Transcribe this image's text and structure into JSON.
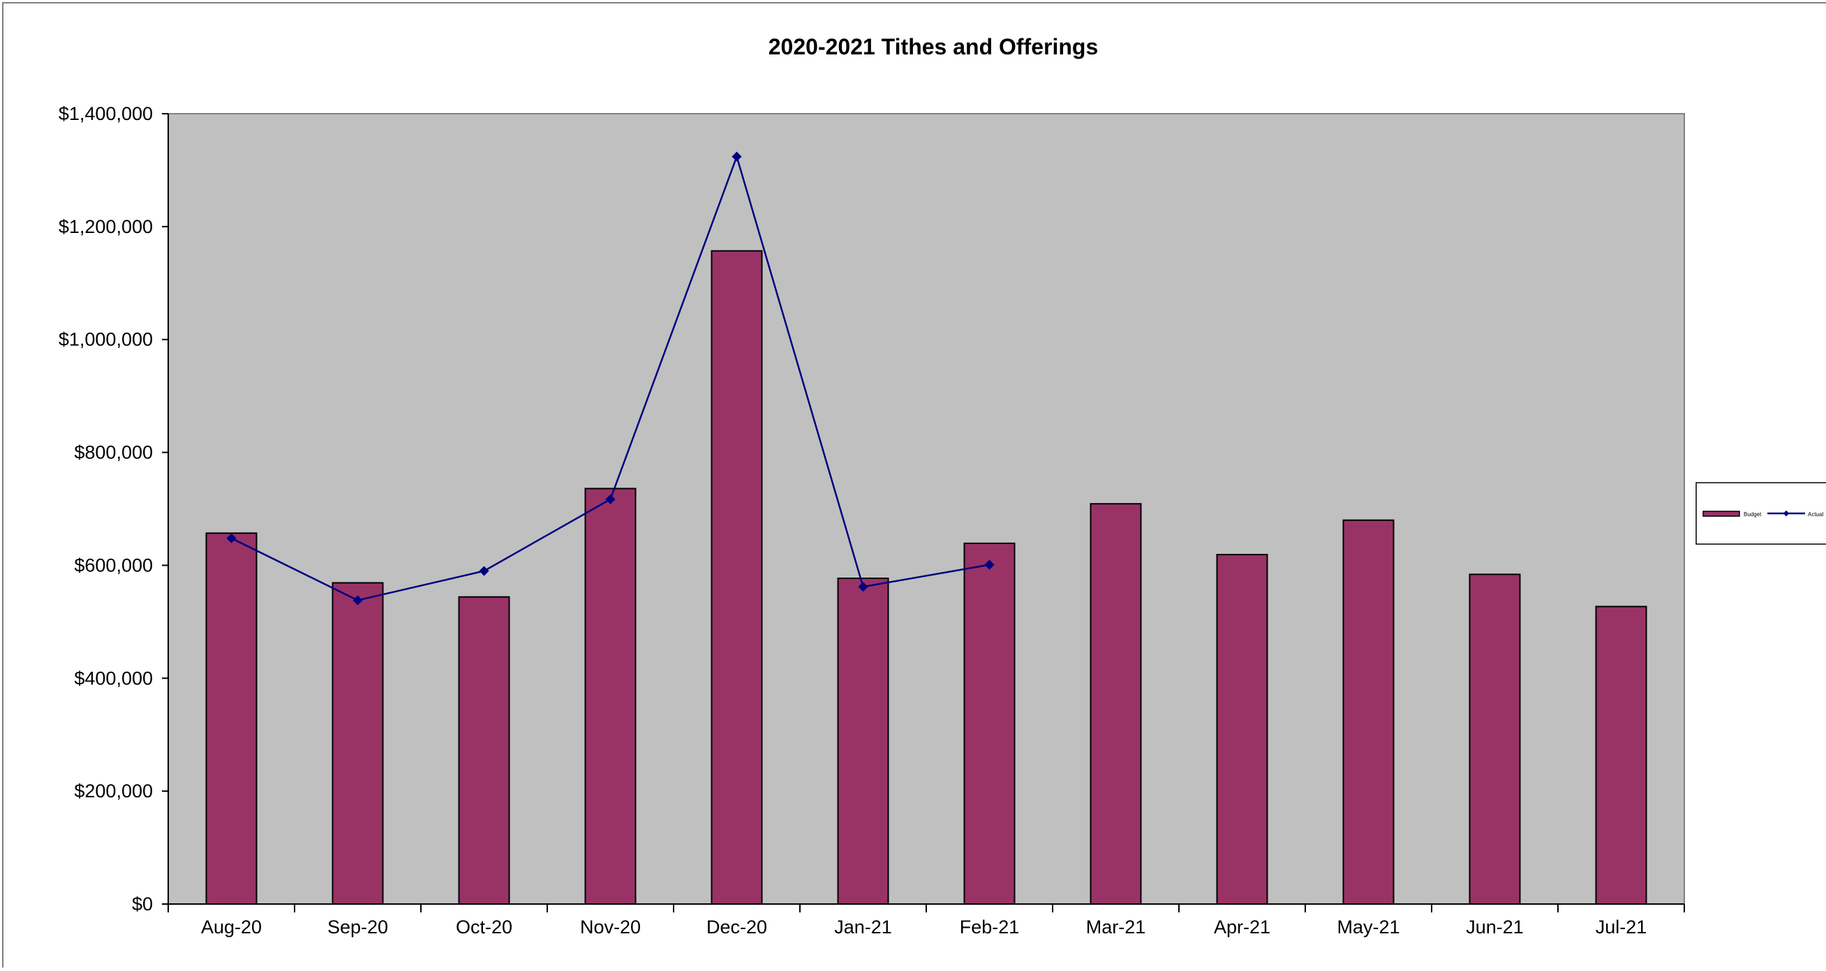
{
  "chart_data": {
    "type": "bar",
    "title": "2020-2021 Tithes and Offerings",
    "xlabel": "",
    "ylabel": "",
    "categories": [
      "Aug-20",
      "Sep-20",
      "Oct-20",
      "Nov-20",
      "Dec-20",
      "Jan-21",
      "Feb-21",
      "Mar-21",
      "Apr-21",
      "May-21",
      "Jun-21",
      "Jul-21"
    ],
    "ylim": [
      0,
      1400000
    ],
    "y_ticks": [
      0,
      200000,
      400000,
      600000,
      800000,
      1000000,
      1200000,
      1400000
    ],
    "y_tick_labels": [
      "$0",
      "$200,000",
      "$400,000",
      "$600,000",
      "$800,000",
      "$1,000,000",
      "$1,200,000",
      "$1,400,000"
    ],
    "grid": false,
    "legend_position": "right",
    "series": [
      {
        "name": "Budget",
        "type": "bar",
        "color": "#993366",
        "values": [
          657000,
          569000,
          544000,
          736000,
          1157000,
          577000,
          639000,
          709000,
          619000,
          680000,
          584000,
          527000
        ]
      },
      {
        "name": "Actual",
        "type": "line",
        "color": "#000080",
        "values": [
          648000,
          538000,
          590000,
          717000,
          1324000,
          562000,
          601000,
          null,
          null,
          null,
          null,
          null
        ]
      }
    ],
    "colors": {
      "plot_background": "#C0C0C0",
      "bar_fill": "#993366",
      "line": "#000080"
    }
  }
}
